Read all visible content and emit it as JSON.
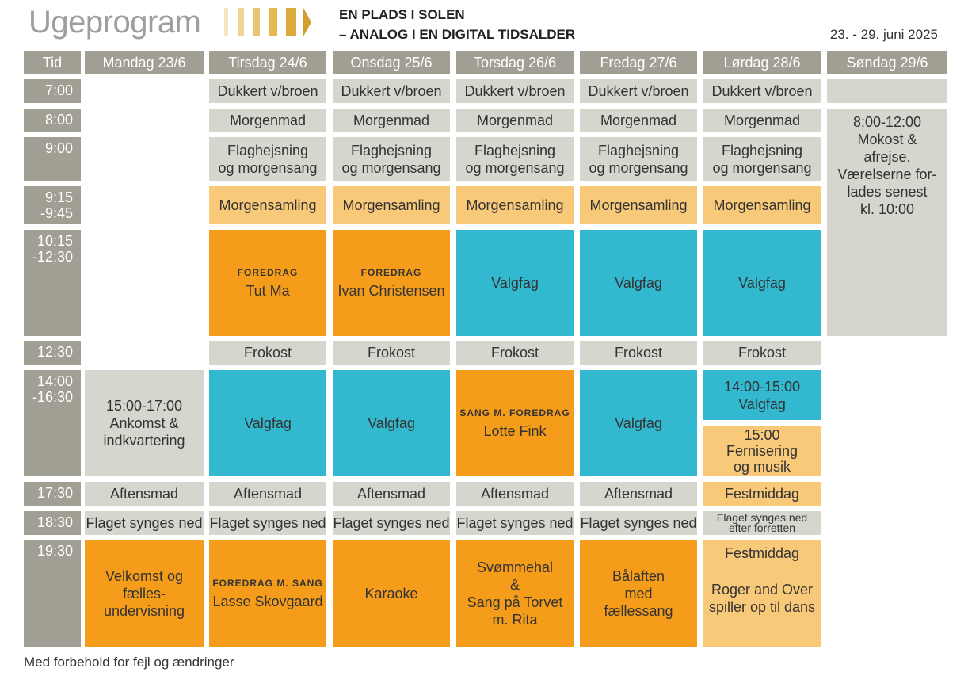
{
  "header": {
    "title": "Ugeprogram",
    "subtitle_line1": "EN PLADS I SOLEN",
    "subtitle_line2": "– ANALOG I EN DIGITAL TIDSALDER",
    "dates": "23. - 29. juni 2025"
  },
  "columns": [
    "Tid",
    "Mandag 23/6",
    "Tirsdag 24/6",
    "Onsdag 25/6",
    "Torsdag 26/6",
    "Fredag 27/6",
    "Lørdag 28/6",
    "Søndag 29/6"
  ],
  "times": {
    "t700": "7:00",
    "t800": "8:00",
    "t900": "9:00",
    "t915a": "9:15",
    "t915b": "-9:45",
    "t1015a": "10:15",
    "t1015b": "-12:30",
    "t1230": "12:30",
    "t1400a": "14:00",
    "t1400b": "-16:30",
    "t1730": "17:30",
    "t1830": "18:30",
    "t1930": "19:30"
  },
  "labels": {
    "dukkert": "Dukkert v/broen",
    "morgenmad": "Morgenmad",
    "flag1": "Flaghejsning",
    "flag2": "og morgensang",
    "morgensamling": "Morgensamling",
    "valgfag": "Valgfag",
    "frokost": "Frokost",
    "aftensmad": "Aftensmad",
    "flaget": "Flaget synges ned",
    "foredrag": "FOREDRAG",
    "foredrag_sang": "FOREDRAG M. SANG",
    "sang_foredrag": "SANG M. FOREDRAG"
  },
  "cells": {
    "tue_foredrag_name": "Tut Ma",
    "wed_foredrag_name": "Ivan Christensen",
    "mon_arrival": [
      "15:00-17:00",
      "Ankomst &",
      "indkvartering"
    ],
    "thu_afternoon_name": "Lotte Fink",
    "sat_afternoon1": [
      "14:00-15:00",
      "Valgfag"
    ],
    "sat_afternoon2": [
      "15:00",
      "Fernisering",
      "og musik"
    ],
    "sat_dinner": "Festmiddag",
    "sat_flag": [
      "Flaget synges ned",
      "efter forretten"
    ],
    "sun_block": [
      "8:00-12:00",
      "Mokost &",
      "afrejse.",
      "Værelserne for-",
      "lades senest",
      "kl. 10:00"
    ],
    "mon_evening": [
      "Velkomst og",
      "fælles-",
      "undervisning"
    ],
    "tue_evening_name": "Lasse Skovgaard",
    "wed_evening": "Karaoke",
    "thu_evening": [
      "Svømmehal",
      "&",
      "Sang på Torvet",
      "m. Rita"
    ],
    "fri_evening": [
      "Bålaften",
      "med",
      "fællessang"
    ],
    "sat_evening": [
      "Festmiddag",
      "",
      "Roger and Over",
      "spiller op til dans"
    ]
  },
  "footer": "Med forbehold for fejl og ændringer",
  "colors": {
    "header_grey": "#a19f93",
    "cell_grey": "#d6d5ce",
    "light_orange": "#f9c97a",
    "orange": "#f59c1a",
    "teal": "#32b9cf",
    "logo_gold": "#e2b23f"
  }
}
